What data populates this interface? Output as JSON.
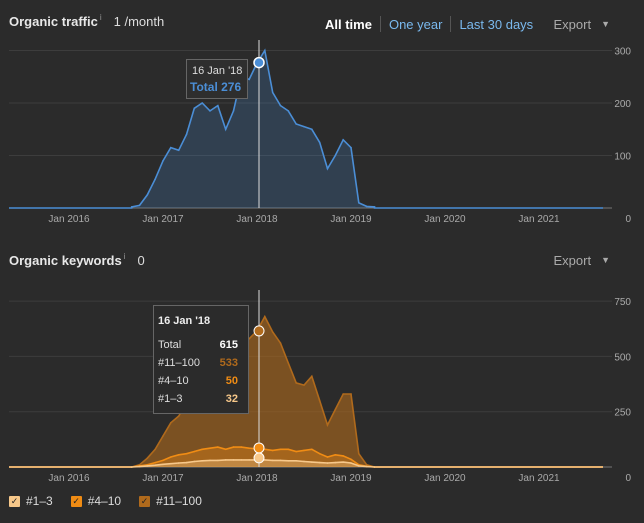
{
  "traffic": {
    "title": "Organic traffic",
    "info": "i",
    "value": "1 /month",
    "range_all": "All time",
    "range_year": "One year",
    "range_30": "Last 30 days",
    "export": "Export",
    "tooltip_date": "16 Jan '18",
    "tooltip_total": "Total 276"
  },
  "keywords": {
    "title": "Organic keywords",
    "info": "i",
    "value": "0",
    "export": "Export",
    "tooltip": {
      "date": "16 Jan '18",
      "rows": [
        {
          "label": "Total",
          "value": "615"
        },
        {
          "label": "#11–100",
          "value": "533"
        },
        {
          "label": "#4–10",
          "value": "50"
        },
        {
          "label": "#1–3",
          "value": "32"
        }
      ]
    }
  },
  "legend": [
    {
      "label": "#1–3",
      "color": "#f7c88a"
    },
    {
      "label": "#4–10",
      "color": "#f08c14"
    },
    {
      "label": "#11–100",
      "color": "#b06a1c"
    }
  ],
  "chart_data": [
    {
      "type": "area",
      "title": "Organic traffic",
      "x_tick_labels": [
        "Jan 2016",
        "Jan 2017",
        "Jan 2018",
        "Jan 2019",
        "Jan 2020",
        "Jan 2021"
      ],
      "y_tick_labels": [
        "0",
        "100",
        "200",
        "300"
      ],
      "ylim": [
        0,
        320
      ],
      "grid": true,
      "color": "#4b8ed6",
      "x": [
        "2016-09",
        "2016-10",
        "2016-11",
        "2016-12",
        "2017-01",
        "2017-02",
        "2017-03",
        "2017-04",
        "2017-05",
        "2017-06",
        "2017-07",
        "2017-08",
        "2017-09",
        "2017-10",
        "2017-11",
        "2017-12",
        "2018-01",
        "2018-02",
        "2018-03",
        "2018-04",
        "2018-05",
        "2018-06",
        "2018-07",
        "2018-08",
        "2018-09",
        "2018-10",
        "2018-11",
        "2018-12",
        "2019-01",
        "2019-02",
        "2019-03",
        "2019-04"
      ],
      "values": [
        2,
        5,
        25,
        55,
        90,
        115,
        110,
        140,
        190,
        200,
        185,
        195,
        150,
        185,
        250,
        245,
        276,
        300,
        220,
        195,
        185,
        160,
        155,
        150,
        125,
        75,
        100,
        130,
        115,
        10,
        3,
        2
      ]
    },
    {
      "type": "area",
      "title": "Organic keywords",
      "x_tick_labels": [
        "Jan 2016",
        "Jan 2017",
        "Jan 2018",
        "Jan 2019",
        "Jan 2020",
        "Jan 2021"
      ],
      "y_tick_labels": [
        "0",
        "250",
        "500",
        "750"
      ],
      "ylim": [
        0,
        800
      ],
      "grid": true,
      "x": [
        "2016-09",
        "2016-10",
        "2016-11",
        "2016-12",
        "2017-01",
        "2017-02",
        "2017-03",
        "2017-04",
        "2017-05",
        "2017-06",
        "2017-07",
        "2017-08",
        "2017-09",
        "2017-10",
        "2017-11",
        "2017-12",
        "2018-01",
        "2018-02",
        "2018-03",
        "2018-04",
        "2018-05",
        "2018-06",
        "2018-07",
        "2018-08",
        "2018-09",
        "2018-10",
        "2018-11",
        "2018-12",
        "2019-01",
        "2019-02",
        "2019-03",
        "2019-04"
      ],
      "series": [
        {
          "name": "#1–3",
          "color": "#f7c88a",
          "values": [
            0,
            2,
            5,
            8,
            12,
            15,
            18,
            20,
            25,
            28,
            30,
            30,
            32,
            32,
            32,
            32,
            32,
            32,
            30,
            30,
            28,
            28,
            25,
            22,
            20,
            18,
            20,
            22,
            18,
            5,
            2,
            0
          ]
        },
        {
          "name": "#4–10",
          "color": "#f08c14",
          "values": [
            0,
            5,
            10,
            20,
            30,
            45,
            55,
            60,
            70,
            80,
            85,
            90,
            80,
            90,
            90,
            85,
            82,
            80,
            75,
            80,
            80,
            70,
            75,
            80,
            60,
            45,
            55,
            50,
            35,
            10,
            3,
            0
          ]
        },
        {
          "name": "#11–100",
          "color": "#b06a1c",
          "values": [
            0,
            10,
            40,
            80,
            140,
            200,
            230,
            290,
            380,
            450,
            460,
            480,
            400,
            450,
            560,
            580,
            615,
            680,
            610,
            560,
            470,
            380,
            370,
            410,
            300,
            190,
            260,
            330,
            330,
            60,
            10,
            0
          ]
        }
      ]
    }
  ]
}
